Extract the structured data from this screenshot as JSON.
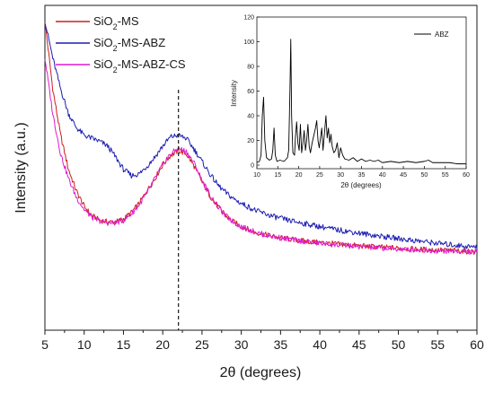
{
  "chart_data": [
    {
      "type": "line",
      "xlabel": "2θ (degrees)",
      "ylabel": "Intensity (a.u.)",
      "xlim": [
        5,
        60
      ],
      "xticks": [
        "5",
        "10",
        "15",
        "20",
        "25",
        "30",
        "35",
        "40",
        "45",
        "50",
        "55",
        "60"
      ],
      "grid": false,
      "legend_position": "top-left",
      "reference_line_x": 22,
      "series": [
        {
          "name": "SiO2-MS",
          "label_base": "SiO",
          "label_sub": "2",
          "label_rest": "-MS",
          "color": "#cc1f1f",
          "x": [
            5,
            6,
            7,
            8,
            9,
            10,
            11,
            12,
            13,
            14,
            15,
            16,
            17,
            18,
            19,
            20,
            21,
            22,
            23,
            24,
            25,
            26,
            27,
            28,
            29,
            30,
            32,
            34,
            36,
            38,
            40,
            42,
            44,
            46,
            48,
            50,
            52,
            54,
            56,
            58,
            60
          ],
          "y": [
            100,
            78,
            63,
            52,
            45,
            40,
            37,
            35.5,
            35,
            35,
            36,
            38,
            41,
            45,
            49,
            53.5,
            56.5,
            58,
            57,
            53,
            48,
            43.5,
            40,
            37,
            35,
            33.5,
            31.5,
            30.3,
            29.5,
            28.8,
            28.3,
            27.9,
            27.5,
            27.1,
            26.8,
            26.5,
            26.2,
            26.0,
            25.8,
            25.6,
            25.4
          ]
        },
        {
          "name": "SiO2-MS-ABZ",
          "label_base": "SiO",
          "label_sub": "2",
          "label_rest": "-MS-ABZ",
          "color": "#1c1cb4",
          "x": [
            5,
            6,
            7,
            8,
            9,
            10,
            11,
            12,
            13,
            14,
            15,
            16,
            17,
            18,
            19,
            20,
            21,
            22,
            23,
            24,
            25,
            26,
            27,
            28,
            29,
            30,
            32,
            34,
            36,
            38,
            40,
            42,
            44,
            46,
            48,
            50,
            52,
            54,
            56,
            58,
            60
          ],
          "y": [
            100,
            88,
            78,
            70,
            65.5,
            63,
            62,
            61,
            59.5,
            56,
            52,
            50,
            50.5,
            53,
            56,
            59.5,
            62.5,
            63,
            62,
            58.5,
            54.5,
            50.5,
            47,
            44.5,
            42.5,
            41,
            38.5,
            36.8,
            35.5,
            34.5,
            33.5,
            32.5,
            31.8,
            31.0,
            30.3,
            29.6,
            29.0,
            28.4,
            27.8,
            27.3,
            26.8
          ]
        },
        {
          "name": "SiO2-MS-ABZ-CS",
          "label_base": "SiO",
          "label_sub": "2",
          "label_rest": "-MS-ABZ-CS",
          "color": "#e01ad0",
          "x": [
            5,
            6,
            7,
            8,
            9,
            10,
            11,
            12,
            13,
            14,
            15,
            16,
            17,
            18,
            19,
            20,
            21,
            22,
            23,
            24,
            25,
            26,
            27,
            28,
            29,
            30,
            32,
            34,
            36,
            38,
            40,
            42,
            44,
            46,
            48,
            50,
            52,
            54,
            56,
            58,
            60
          ],
          "y": [
            88,
            70,
            57,
            49,
            43,
            39,
            36.5,
            35.3,
            34.7,
            34.7,
            35.5,
            37.5,
            40.5,
            44.5,
            49,
            53.5,
            57,
            58.8,
            57.8,
            54,
            48.5,
            43.8,
            40,
            37,
            35,
            33.5,
            31.5,
            30.3,
            29.4,
            28.7,
            28.1,
            27.6,
            27.2,
            26.8,
            26.5,
            26.2,
            26.0,
            25.8,
            25.6,
            25.4,
            25.2
          ]
        }
      ]
    },
    {
      "type": "line",
      "xlabel": "2θ (degrees)",
      "ylabel": "Intensity",
      "xlim": [
        10,
        60
      ],
      "ylim": [
        0,
        120
      ],
      "xticks": [
        "10",
        "15",
        "20",
        "25",
        "30",
        "35",
        "40",
        "45",
        "50",
        "55",
        "60"
      ],
      "yticks": [
        "0",
        "20",
        "40",
        "60",
        "80",
        "100",
        "120"
      ],
      "grid": false,
      "legend_position": "top-right",
      "series": [
        {
          "name": "ABZ",
          "color": "#000000",
          "x": [
            10,
            10.6,
            11.0,
            11.3,
            11.6,
            11.9,
            12.3,
            13,
            13.5,
            13.8,
            14.1,
            14.4,
            14.8,
            15.5,
            16.5,
            17.3,
            17.6,
            17.9,
            18.1,
            18.3,
            18.6,
            19.0,
            19.2,
            19.5,
            19.8,
            20.1,
            20.4,
            20.7,
            21.0,
            21.3,
            21.6,
            21.9,
            22.2,
            22.5,
            22.8,
            23.2,
            23.6,
            24.0,
            24.3,
            24.6,
            24.9,
            25.2,
            25.5,
            25.8,
            26.2,
            26.5,
            26.8,
            27.1,
            27.4,
            27.7,
            28.0,
            28.4,
            28.8,
            29.2,
            29.6,
            30.0,
            30.5,
            31.0,
            32,
            33,
            34,
            35,
            36,
            37,
            38,
            39,
            40,
            42,
            44,
            46,
            48,
            50,
            51,
            52,
            54,
            56,
            58,
            60
          ],
          "y": [
            2,
            3,
            8,
            40,
            55,
            20,
            6,
            4,
            5,
            12,
            30,
            8,
            3,
            4,
            3,
            6,
            12,
            60,
            102,
            40,
            10,
            8,
            22,
            35,
            18,
            12,
            33,
            10,
            18,
            28,
            12,
            20,
            33,
            15,
            10,
            18,
            24,
            30,
            36,
            20,
            14,
            22,
            30,
            12,
            28,
            40,
            22,
            30,
            18,
            25,
            15,
            10,
            12,
            18,
            6,
            14,
            8,
            5,
            4,
            6,
            3,
            5,
            3,
            4,
            3,
            4,
            2,
            3,
            2,
            3,
            2,
            3,
            4,
            2,
            2,
            2,
            1,
            1
          ]
        }
      ]
    }
  ]
}
